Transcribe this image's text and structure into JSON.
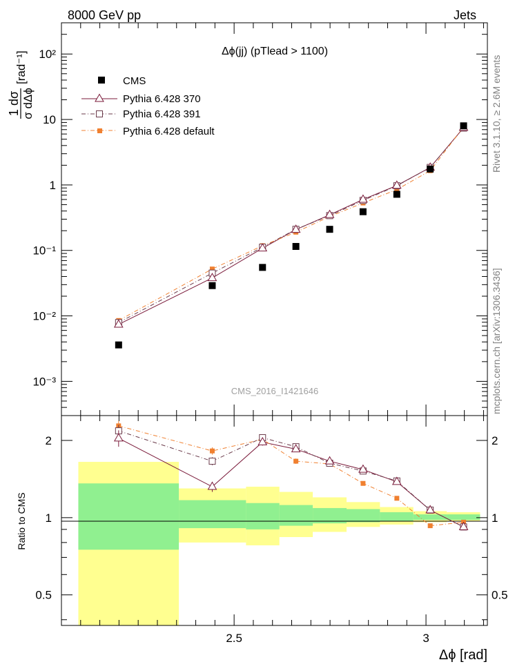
{
  "header": {
    "energy_label": "8000 GeV pp",
    "category_label": "Jets",
    "rivet_label": "Rivet 3.1.10, ≥ 2.6M events",
    "mcplots_label": "mcplots.cern.ch [arXiv:1306.3436]"
  },
  "colors": {
    "cms": "#000000",
    "pythia370": "#7a1a3a",
    "pythia391": "#6a3a4a",
    "pythiadefault": "#f08030",
    "band_inner": "#90f090",
    "band_outer": "#ffff90"
  },
  "chart_data": [
    {
      "type": "scatter",
      "title": "Δϕ(jj) (pTlead >  1100)",
      "ylabel_top": "1 dσ",
      "ylabel_bottom": "σ dΔϕ",
      "ylabel_unit": "[rad⁻¹]",
      "yscale": "log",
      "ylim": [
        0.0003,
        300
      ],
      "y_tick_labels": [
        "10⁻³",
        "10⁻²",
        "10⁻¹",
        "1",
        "10",
        "10²"
      ],
      "xlim": [
        2.05,
        3.16
      ],
      "watermark": "CMS_2016_I1421646",
      "x": [
        2.199,
        2.443,
        2.574,
        2.661,
        2.749,
        2.836,
        2.924,
        3.011,
        3.098
      ],
      "series": [
        {
          "name": "CMS",
          "key": "cms",
          "values": [
            0.0036,
            0.029,
            0.055,
            0.115,
            0.21,
            0.39,
            0.72,
            1.75,
            8.0
          ]
        },
        {
          "name": "Pythia 6.428 370",
          "key": "pythia370",
          "values": [
            0.0074,
            0.038,
            0.108,
            0.208,
            0.35,
            0.6,
            0.98,
            1.85,
            7.5
          ]
        },
        {
          "name": "Pythia 6.428 391",
          "key": "pythia391",
          "values": [
            0.0079,
            0.045,
            0.112,
            0.21,
            0.34,
            0.58,
            0.97,
            1.85,
            7.4
          ]
        },
        {
          "name": "Pythia 6.428 default",
          "key": "pythiadefault",
          "values": [
            0.0085,
            0.052,
            0.118,
            0.19,
            0.33,
            0.53,
            0.85,
            1.65,
            7.7
          ]
        }
      ]
    },
    {
      "type": "line",
      "ylabel": "Ratio to CMS",
      "xlabel": "Δϕ [rad]",
      "yscale": "log",
      "ylim": [
        0.38,
        2.5
      ],
      "y_ticks": [
        0.5,
        1,
        2
      ],
      "y_tick_labels": [
        "0.5",
        "1",
        "2"
      ],
      "x_ticks": [
        2.5,
        3.0
      ],
      "x_tick_labels": [
        "2.5",
        "3"
      ],
      "reference_line": 1,
      "x": [
        2.199,
        2.443,
        2.574,
        2.661,
        2.749,
        2.836,
        2.924,
        3.011,
        3.098
      ],
      "bands": {
        "edges": [
          2.094,
          2.356,
          2.531,
          2.618,
          2.705,
          2.793,
          2.88,
          2.967,
          3.054,
          3.141
        ],
        "inner": [
          [
            0.75,
            1.36
          ],
          [
            0.91,
            1.17
          ],
          [
            0.9,
            1.14
          ],
          [
            0.93,
            1.12
          ],
          [
            0.95,
            1.09
          ],
          [
            0.96,
            1.08
          ],
          [
            0.97,
            1.05
          ],
          [
            0.98,
            1.03
          ],
          [
            0.98,
            1.03
          ]
        ],
        "outer": [
          [
            0.37,
            1.65
          ],
          [
            0.8,
            1.3
          ],
          [
            0.78,
            1.32
          ],
          [
            0.84,
            1.26
          ],
          [
            0.88,
            1.2
          ],
          [
            0.92,
            1.15
          ],
          [
            0.94,
            1.1
          ],
          [
            0.96,
            1.06
          ],
          [
            0.97,
            1.05
          ]
        ]
      },
      "series": [
        {
          "name": "Pythia 6.428 370",
          "key": "pythia370",
          "values": [
            2.04,
            1.32,
            1.97,
            1.85,
            1.66,
            1.54,
            1.38,
            1.07,
            0.92
          ],
          "errors": [
            0.15,
            0.06,
            0.06,
            0.04,
            0.03,
            0.03,
            0.02,
            0.01,
            0.01
          ]
        },
        {
          "name": "Pythia 6.428 391",
          "key": "pythia391",
          "values": [
            2.18,
            1.66,
            2.05,
            1.89,
            1.63,
            1.52,
            1.39,
            1.07,
            0.92
          ],
          "errors": [
            0.12,
            0.06,
            0.06,
            0.04,
            0.03,
            0.02,
            0.02,
            0.01,
            0.01
          ]
        },
        {
          "name": "Pythia 6.428 default",
          "key": "pythiadefault",
          "values": [
            2.28,
            1.82,
            2.02,
            1.66,
            1.62,
            1.36,
            1.19,
            0.93,
            0.96
          ],
          "errors": [
            0.1,
            0.06,
            0.05,
            0.04,
            0.03,
            0.02,
            0.02,
            0.01,
            0.01
          ]
        }
      ]
    }
  ]
}
